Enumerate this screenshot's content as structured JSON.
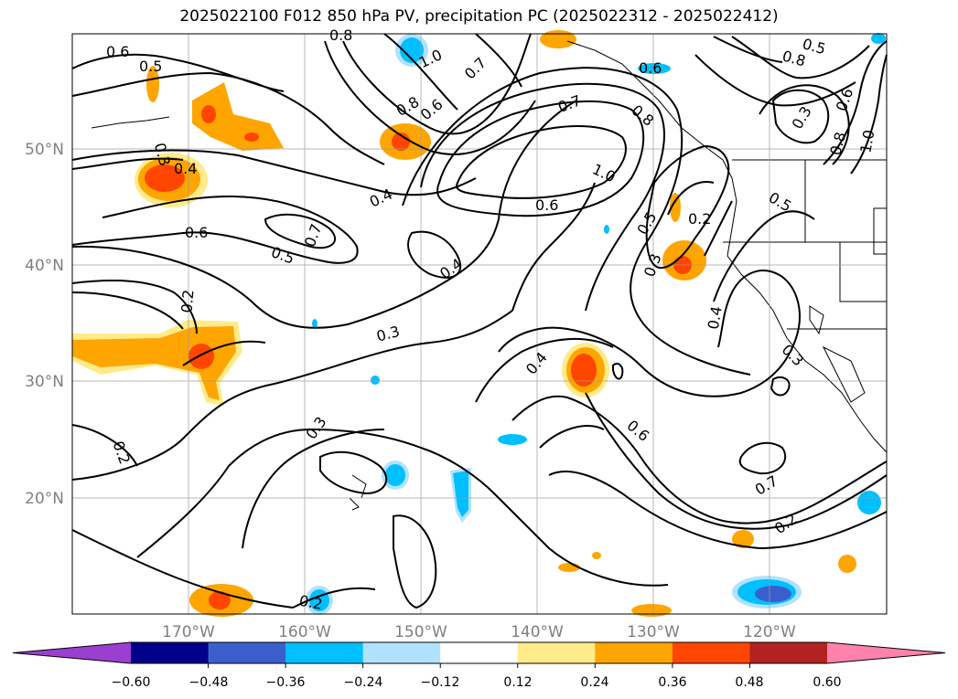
{
  "title": "2025022100 F012 850 hPa PV, precipitation PC (2025022312 - 2025022412)",
  "latitude_labels": [
    "50°N",
    "40°N",
    "30°N",
    "20°N"
  ],
  "longitude_labels": [
    "170°W",
    "160°W",
    "150°W",
    "140°W",
    "130°W",
    "120°W"
  ],
  "colorbar": {
    "tick_labels": [
      "−0.60",
      "−0.48",
      "−0.36",
      "−0.24",
      "−0.12",
      "0.12",
      "0.24",
      "0.36",
      "0.48",
      "0.60"
    ],
    "colors": [
      "#9b3fd1",
      "#00008b",
      "#3a5fcd",
      "#00bfff",
      "#b0e2ff",
      "#ffffff",
      "#ffeb8a",
      "#ffa500",
      "#ff4500",
      "#b22222",
      "#ff82ab"
    ]
  },
  "contour_labels": [
    "0.6",
    "0.5",
    "0.3",
    "0.4",
    "0.6",
    "0.5",
    "0.7",
    "0.2",
    "0.4",
    "0.3",
    "0.8",
    "0.6",
    "0.7",
    "1.0",
    "0.4",
    "0.8",
    "0.6",
    "0.7",
    "1.0",
    "0.6",
    "0.5",
    "0.3",
    "0.2",
    "0.4",
    "0.4",
    "0.6",
    "0.3",
    "0.2",
    "0.3",
    "0.7",
    "0.2",
    "0.5",
    "0.8",
    "0.6",
    "1.0",
    "0.8",
    "0.3",
    "0.5",
    "0.8",
    "0.2"
  ]
}
